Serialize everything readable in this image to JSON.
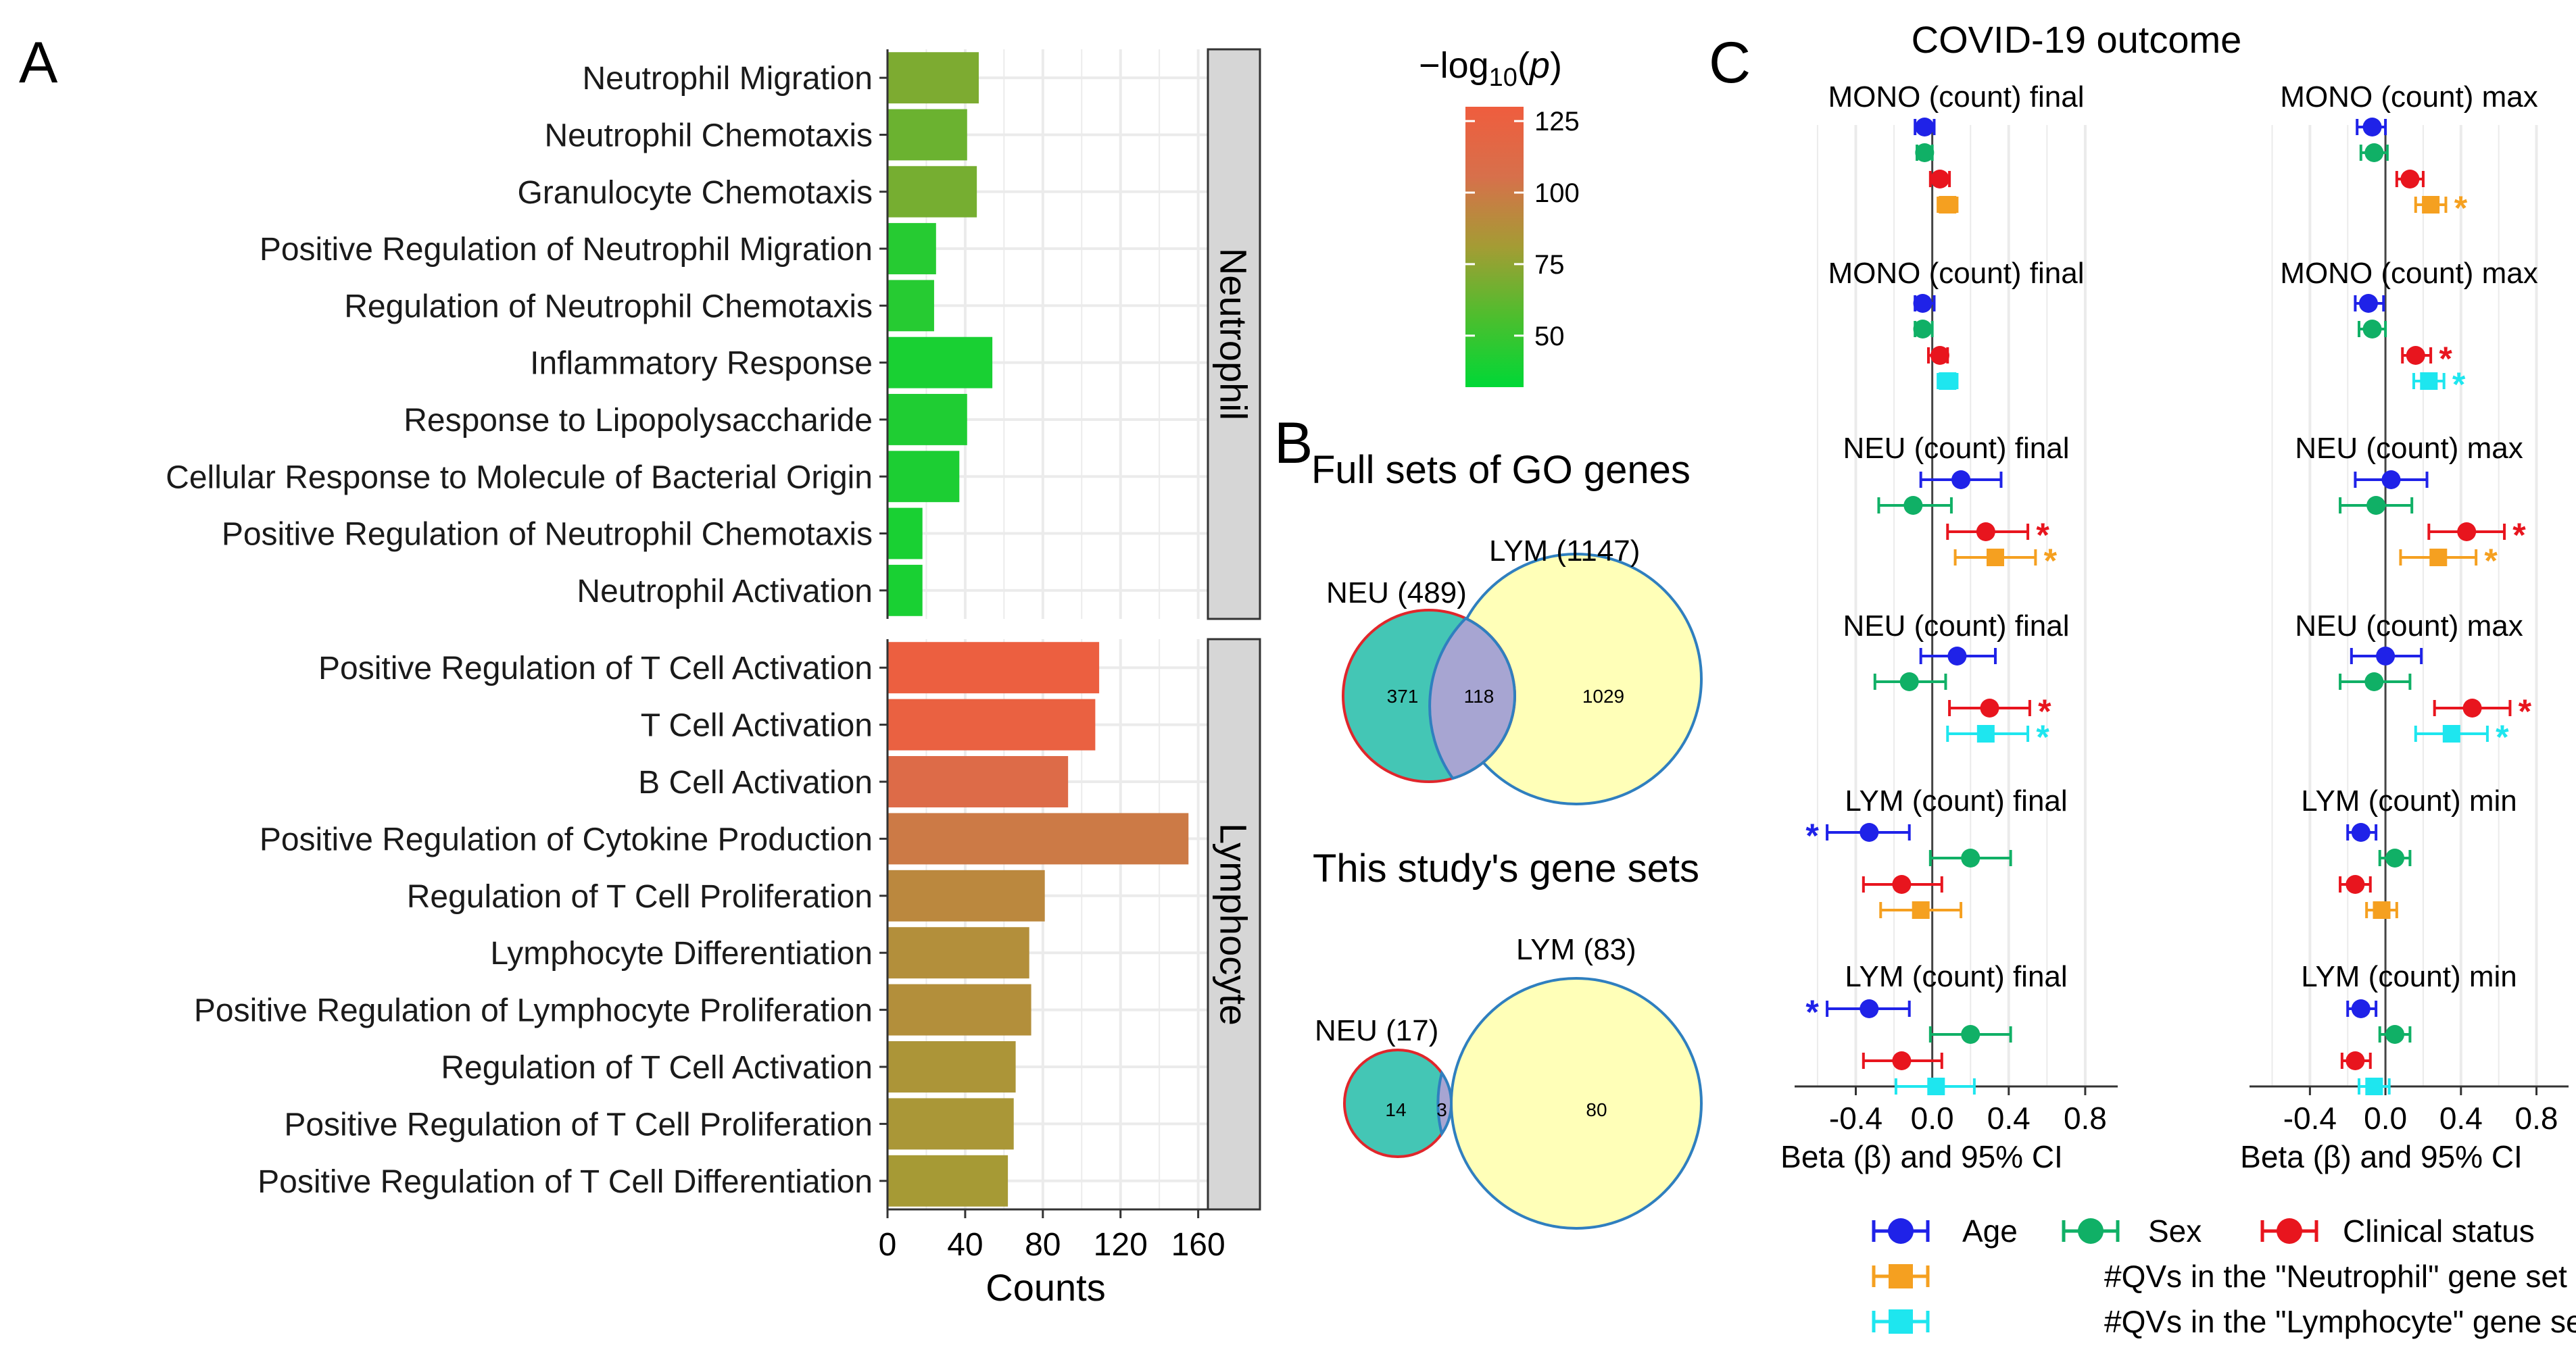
{
  "panel_labels": {
    "a": "A",
    "b": "B",
    "c": "C"
  },
  "colors": {
    "age": "#1f22e8",
    "sex": "#10b066",
    "clinical": "#e8151e",
    "neu_qv": "#f5a020",
    "lym_qv": "#1ee6ef",
    "strip_bg": "#d6d6d6",
    "grid": "#ebebeb",
    "venn_neu_fill": "#44c6b5",
    "venn_lym_fill": "#ffffb8",
    "venn_overlap_fill": "#a7a5d2",
    "venn_neu_stroke": "#e0262b",
    "venn_lym_stroke": "#2f7fbf"
  },
  "colorbar": {
    "title": "−log10(p)",
    "gradient": [
      "#00d836",
      "#4dbe2e",
      "#a49c34",
      "#d7704b",
      "#ef5d3e"
    ],
    "min": 32,
    "max": 130,
    "ticks": [
      {
        "value": 125,
        "label": "125"
      },
      {
        "value": 100,
        "label": "100"
      },
      {
        "value": 75,
        "label": "75"
      },
      {
        "value": 50,
        "label": "50"
      }
    ]
  },
  "panel_b": {
    "title_full": "Full sets of GO genes",
    "title_study": "This study's gene sets",
    "venn_full": {
      "neu_label": "NEU (489)",
      "lym_label": "LYM (1147)",
      "neu_only": "371",
      "overlap": "118",
      "lym_only": "1029"
    },
    "venn_study": {
      "neu_label": "NEU (17)",
      "lym_label": "LYM (83)",
      "neu_only": "14",
      "overlap": "3",
      "lym_only": "80"
    }
  },
  "panel_c": {
    "title": "COVID-19 outcome",
    "xlabel": "Beta (β) and 95% CI",
    "legend": {
      "age": "Age",
      "sex": "Sex",
      "clinical": "Clinical status",
      "neu_qv": "#QVs in the \"Neutrophil\" gene set",
      "lym_qv": "#QVs in the \"Lymphocyte\" gene set"
    }
  },
  "chart_data": [
    {
      "type": "bar",
      "orientation": "horizontal",
      "xlabel": "Counts",
      "xlim": [
        0,
        165
      ],
      "xticks": [
        0,
        40,
        80,
        120,
        160
      ],
      "color_by": "−log10(p)",
      "facets": [
        {
          "strip": "Neutrophil",
          "categories": [
            "Neutrophil Migration",
            "Neutrophil Chemotaxis",
            "Granulocyte Chemotaxis",
            "Positive Regulation of Neutrophil Migration",
            "Regulation of Neutrophil Chemotaxis",
            "Inflammatory Response",
            "Response to Lipopolysaccharide",
            "Cellular Response to Molecule of Bacterial Origin",
            "Positive Regulation of Neutrophil Chemotaxis",
            "Neutrophil Activation"
          ],
          "values": [
            47,
            41,
            46,
            25,
            24,
            54,
            41,
            37,
            18,
            18
          ],
          "neg_log10_p": [
            70,
            65,
            68,
            44,
            44,
            40,
            42,
            41,
            40,
            40
          ]
        },
        {
          "strip": "Lymphocyte",
          "categories": [
            "Positive Regulation of T Cell Activation",
            "T Cell Activation",
            "B Cell Activation",
            "Positive Regulation of Cytokine Production",
            "Regulation of T Cell Proliferation",
            "Lymphocyte Differentiation",
            "Positive Regulation of Lymphocyte Proliferation",
            "Regulation of T Cell Activation",
            "Positive Regulation of T Cell Proliferation",
            "Positive Regulation of T Cell Differentiation"
          ],
          "values": [
            109,
            107,
            93,
            155,
            81,
            73,
            74,
            66,
            65,
            62
          ],
          "neg_log10_p": [
            127,
            125,
            112,
            100,
            92,
            88,
            88,
            85,
            84,
            82
          ]
        }
      ]
    },
    {
      "type": "forest",
      "xlabel": "Beta (β) and 95% CI",
      "xlim": [
        -0.72,
        0.97
      ],
      "xticks": [
        -0.4,
        0.0,
        0.4,
        0.8
      ],
      "xticklabels": [
        "-0.4",
        "0.0",
        "0.4",
        "0.8"
      ],
      "significance_mark": "*",
      "columns": [
        {
          "facets": [
            {
              "title": "MONO (count) final",
              "rows": [
                {
                  "var": "age",
                  "beta": -0.04,
                  "lo": -0.09,
                  "hi": 0.01,
                  "sig": false
                },
                {
                  "var": "sex",
                  "beta": -0.04,
                  "lo": -0.08,
                  "hi": 0.0,
                  "sig": false
                },
                {
                  "var": "clinical",
                  "beta": 0.04,
                  "lo": -0.01,
                  "hi": 0.09,
                  "sig": false
                },
                {
                  "var": "neu_qv",
                  "beta": 0.08,
                  "lo": 0.03,
                  "hi": 0.13,
                  "sig": false
                }
              ]
            },
            {
              "title": "MONO (count) final",
              "rows": [
                {
                  "var": "age",
                  "beta": -0.05,
                  "lo": -0.09,
                  "hi": 0.01,
                  "sig": false
                },
                {
                  "var": "sex",
                  "beta": -0.05,
                  "lo": -0.09,
                  "hi": 0.0,
                  "sig": false
                },
                {
                  "var": "clinical",
                  "beta": 0.04,
                  "lo": -0.02,
                  "hi": 0.08,
                  "sig": false
                },
                {
                  "var": "lym_qv",
                  "beta": 0.08,
                  "lo": 0.03,
                  "hi": 0.13,
                  "sig": false
                }
              ]
            },
            {
              "title": "NEU (count) final",
              "rows": [
                {
                  "var": "age",
                  "beta": 0.15,
                  "lo": -0.06,
                  "hi": 0.36,
                  "sig": false
                },
                {
                  "var": "sex",
                  "beta": -0.1,
                  "lo": -0.28,
                  "hi": 0.1,
                  "sig": false
                },
                {
                  "var": "clinical",
                  "beta": 0.28,
                  "lo": 0.08,
                  "hi": 0.5,
                  "sig": true
                },
                {
                  "var": "neu_qv",
                  "beta": 0.33,
                  "lo": 0.12,
                  "hi": 0.54,
                  "sig": true
                }
              ]
            },
            {
              "title": "NEU (count) final",
              "rows": [
                {
                  "var": "age",
                  "beta": 0.13,
                  "lo": -0.06,
                  "hi": 0.33,
                  "sig": false
                },
                {
                  "var": "sex",
                  "beta": -0.12,
                  "lo": -0.3,
                  "hi": 0.07,
                  "sig": false
                },
                {
                  "var": "clinical",
                  "beta": 0.3,
                  "lo": 0.09,
                  "hi": 0.51,
                  "sig": true
                },
                {
                  "var": "lym_qv",
                  "beta": 0.28,
                  "lo": 0.08,
                  "hi": 0.5,
                  "sig": true
                }
              ]
            },
            {
              "title": "LYM (count) final",
              "rows": [
                {
                  "var": "age",
                  "beta": -0.33,
                  "lo": -0.55,
                  "hi": -0.12,
                  "sig": true
                },
                {
                  "var": "sex",
                  "beta": 0.2,
                  "lo": -0.01,
                  "hi": 0.41,
                  "sig": false
                },
                {
                  "var": "clinical",
                  "beta": -0.16,
                  "lo": -0.36,
                  "hi": 0.05,
                  "sig": false
                },
                {
                  "var": "neu_qv",
                  "beta": -0.06,
                  "lo": -0.27,
                  "hi": 0.15,
                  "sig": false
                }
              ]
            },
            {
              "title": "LYM (count) final",
              "rows": [
                {
                  "var": "age",
                  "beta": -0.33,
                  "lo": -0.55,
                  "hi": -0.12,
                  "sig": true
                },
                {
                  "var": "sex",
                  "beta": 0.2,
                  "lo": -0.01,
                  "hi": 0.41,
                  "sig": false
                },
                {
                  "var": "clinical",
                  "beta": -0.16,
                  "lo": -0.36,
                  "hi": 0.05,
                  "sig": false
                },
                {
                  "var": "lym_qv",
                  "beta": 0.02,
                  "lo": -0.19,
                  "hi": 0.22,
                  "sig": false
                }
              ]
            }
          ]
        },
        {
          "facets": [
            {
              "title": "MONO (count) max",
              "rows": [
                {
                  "var": "age",
                  "beta": -0.07,
                  "lo": -0.15,
                  "hi": 0.0,
                  "sig": false
                },
                {
                  "var": "sex",
                  "beta": -0.06,
                  "lo": -0.13,
                  "hi": 0.01,
                  "sig": false
                },
                {
                  "var": "clinical",
                  "beta": 0.13,
                  "lo": 0.06,
                  "hi": 0.2,
                  "sig": false
                },
                {
                  "var": "neu_qv",
                  "beta": 0.24,
                  "lo": 0.16,
                  "hi": 0.32,
                  "sig": true
                }
              ]
            },
            {
              "title": "MONO (count) max",
              "rows": [
                {
                  "var": "age",
                  "beta": -0.09,
                  "lo": -0.16,
                  "hi": -0.01,
                  "sig": false
                },
                {
                  "var": "sex",
                  "beta": -0.07,
                  "lo": -0.14,
                  "hi": 0.0,
                  "sig": false
                },
                {
                  "var": "clinical",
                  "beta": 0.16,
                  "lo": 0.09,
                  "hi": 0.24,
                  "sig": true
                },
                {
                  "var": "lym_qv",
                  "beta": 0.23,
                  "lo": 0.15,
                  "hi": 0.31,
                  "sig": true
                }
              ]
            },
            {
              "title": "NEU (count) max",
              "rows": [
                {
                  "var": "age",
                  "beta": 0.03,
                  "lo": -0.16,
                  "hi": 0.22,
                  "sig": false
                },
                {
                  "var": "sex",
                  "beta": -0.05,
                  "lo": -0.24,
                  "hi": 0.14,
                  "sig": false
                },
                {
                  "var": "clinical",
                  "beta": 0.43,
                  "lo": 0.23,
                  "hi": 0.63,
                  "sig": true
                },
                {
                  "var": "neu_qv",
                  "beta": 0.28,
                  "lo": 0.08,
                  "hi": 0.48,
                  "sig": true
                }
              ]
            },
            {
              "title": "NEU (count) max",
              "rows": [
                {
                  "var": "age",
                  "beta": 0.0,
                  "lo": -0.18,
                  "hi": 0.19,
                  "sig": false
                },
                {
                  "var": "sex",
                  "beta": -0.06,
                  "lo": -0.24,
                  "hi": 0.13,
                  "sig": false
                },
                {
                  "var": "clinical",
                  "beta": 0.46,
                  "lo": 0.26,
                  "hi": 0.66,
                  "sig": true
                },
                {
                  "var": "lym_qv",
                  "beta": 0.35,
                  "lo": 0.16,
                  "hi": 0.54,
                  "sig": true
                }
              ]
            },
            {
              "title": "LYM (count) min",
              "rows": [
                {
                  "var": "age",
                  "beta": -0.13,
                  "lo": -0.2,
                  "hi": -0.05,
                  "sig": false
                },
                {
                  "var": "sex",
                  "beta": 0.05,
                  "lo": -0.03,
                  "hi": 0.13,
                  "sig": false
                },
                {
                  "var": "clinical",
                  "beta": -0.16,
                  "lo": -0.24,
                  "hi": -0.08,
                  "sig": false
                },
                {
                  "var": "neu_qv",
                  "beta": -0.02,
                  "lo": -0.1,
                  "hi": 0.06,
                  "sig": false
                }
              ]
            },
            {
              "title": "LYM (count) min",
              "rows": [
                {
                  "var": "age",
                  "beta": -0.13,
                  "lo": -0.2,
                  "hi": -0.05,
                  "sig": false
                },
                {
                  "var": "sex",
                  "beta": 0.05,
                  "lo": -0.03,
                  "hi": 0.13,
                  "sig": false
                },
                {
                  "var": "clinical",
                  "beta": -0.16,
                  "lo": -0.23,
                  "hi": -0.08,
                  "sig": false
                },
                {
                  "var": "lym_qv",
                  "beta": -0.06,
                  "lo": -0.14,
                  "hi": 0.02,
                  "sig": false
                }
              ]
            }
          ]
        }
      ]
    }
  ]
}
